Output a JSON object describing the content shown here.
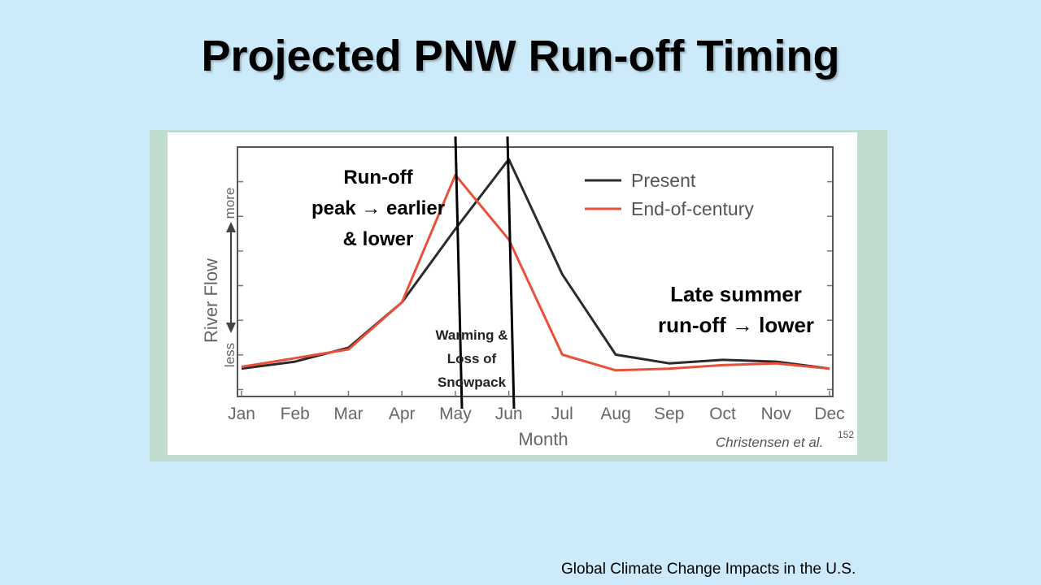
{
  "title": "Projected PNW Run-off Timing",
  "source": "Global Climate Change Impacts in the U.S.",
  "annotations": {
    "runoff": [
      "Run-off",
      "peak → earlier",
      "& lower"
    ],
    "late_summer": [
      "Late summer",
      "run-off → lower"
    ],
    "warming": [
      "Warming &",
      "Loss of",
      "Snowpack"
    ]
  },
  "chart_data": {
    "type": "line",
    "xlabel": "Month",
    "ylabel": "River Flow",
    "y_more": "more",
    "y_less": "less",
    "x": [
      "Jan",
      "Feb",
      "Mar",
      "Apr",
      "May",
      "Jun",
      "Jul",
      "Aug",
      "Sep",
      "Oct",
      "Nov",
      "Dec"
    ],
    "series": [
      {
        "name": "Present",
        "color": "#2b2b2b",
        "values": [
          0.8,
          1.0,
          1.4,
          2.7,
          4.8,
          6.8,
          3.5,
          1.2,
          0.95,
          1.05,
          1.0,
          0.8
        ]
      },
      {
        "name": "End-of-century",
        "color": "#e8503a",
        "values": [
          0.85,
          1.1,
          1.35,
          2.7,
          6.35,
          4.5,
          1.2,
          0.75,
          0.8,
          0.9,
          0.95,
          0.8
        ]
      }
    ],
    "ylim": [
      0,
      7.15
    ],
    "legend": "top-right",
    "credit": "Christensen et al.",
    "credit_ref": "152"
  }
}
